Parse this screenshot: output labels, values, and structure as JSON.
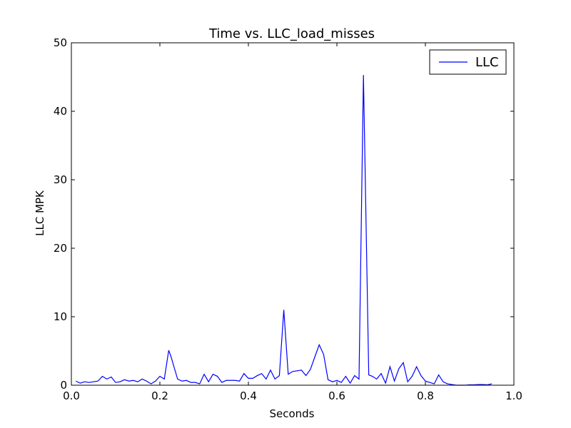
{
  "chart_data": {
    "type": "line",
    "title": "Time vs. LLC_load_misses",
    "xlabel": "Seconds",
    "ylabel": "LLC MPK",
    "xlim": [
      0.0,
      1.0
    ],
    "ylim": [
      0,
      50
    ],
    "xticks": [
      "0.0",
      "0.2",
      "0.4",
      "0.6",
      "0.8",
      "1.0"
    ],
    "xtick_values": [
      0.0,
      0.2,
      0.4,
      0.6,
      0.8,
      1.0
    ],
    "yticks": [
      "0",
      "10",
      "20",
      "30",
      "40",
      "50"
    ],
    "ytick_values": [
      0,
      10,
      20,
      30,
      40,
      50
    ],
    "grid": false,
    "legend_position": "top-right",
    "series": [
      {
        "name": "LLC",
        "color": "#0000ff",
        "x": [
          0.01,
          0.02,
          0.03,
          0.04,
          0.05,
          0.06,
          0.07,
          0.08,
          0.09,
          0.1,
          0.11,
          0.12,
          0.13,
          0.14,
          0.15,
          0.16,
          0.17,
          0.18,
          0.19,
          0.2,
          0.21,
          0.22,
          0.225,
          0.23,
          0.24,
          0.25,
          0.26,
          0.27,
          0.28,
          0.29,
          0.3,
          0.31,
          0.32,
          0.33,
          0.34,
          0.35,
          0.36,
          0.37,
          0.38,
          0.39,
          0.4,
          0.41,
          0.42,
          0.43,
          0.44,
          0.45,
          0.46,
          0.47,
          0.48,
          0.49,
          0.5,
          0.51,
          0.52,
          0.53,
          0.54,
          0.55,
          0.56,
          0.57,
          0.58,
          0.59,
          0.6,
          0.61,
          0.62,
          0.63,
          0.64,
          0.65,
          0.66,
          0.672,
          0.68,
          0.69,
          0.7,
          0.71,
          0.72,
          0.73,
          0.74,
          0.75,
          0.76,
          0.77,
          0.78,
          0.79,
          0.8,
          0.81,
          0.82,
          0.83,
          0.84,
          0.85,
          0.86,
          0.87,
          0.88,
          0.89,
          0.9,
          0.91,
          0.92,
          0.93,
          0.94,
          0.95
        ],
        "values": [
          0.6,
          0.3,
          0.5,
          0.4,
          0.5,
          0.6,
          1.3,
          0.9,
          1.2,
          0.4,
          0.5,
          0.8,
          0.6,
          0.7,
          0.5,
          0.9,
          0.6,
          0.2,
          0.6,
          1.3,
          0.9,
          5.1,
          4.2,
          3.1,
          0.9,
          0.6,
          0.7,
          0.4,
          0.4,
          0.2,
          1.6,
          0.5,
          1.6,
          1.3,
          0.4,
          0.7,
          0.7,
          0.7,
          0.6,
          1.7,
          1.0,
          1.0,
          1.4,
          1.7,
          0.9,
          2.2,
          0.9,
          1.4,
          11.0,
          1.6,
          2.0,
          2.1,
          2.2,
          1.4,
          2.3,
          4.1,
          5.9,
          4.5,
          0.8,
          0.5,
          0.7,
          0.4,
          1.3,
          0.3,
          1.4,
          0.9,
          45.3,
          1.5,
          1.3,
          0.9,
          1.7,
          0.3,
          2.7,
          0.6,
          2.4,
          3.3,
          0.5,
          1.3,
          2.7,
          1.4,
          0.6,
          0.4,
          0.2,
          1.5,
          0.5,
          0.2,
          0.1,
          0.0,
          0.0,
          0.0,
          0.05,
          0.05,
          0.1,
          0.1,
          0.05,
          0.2
        ]
      }
    ]
  }
}
